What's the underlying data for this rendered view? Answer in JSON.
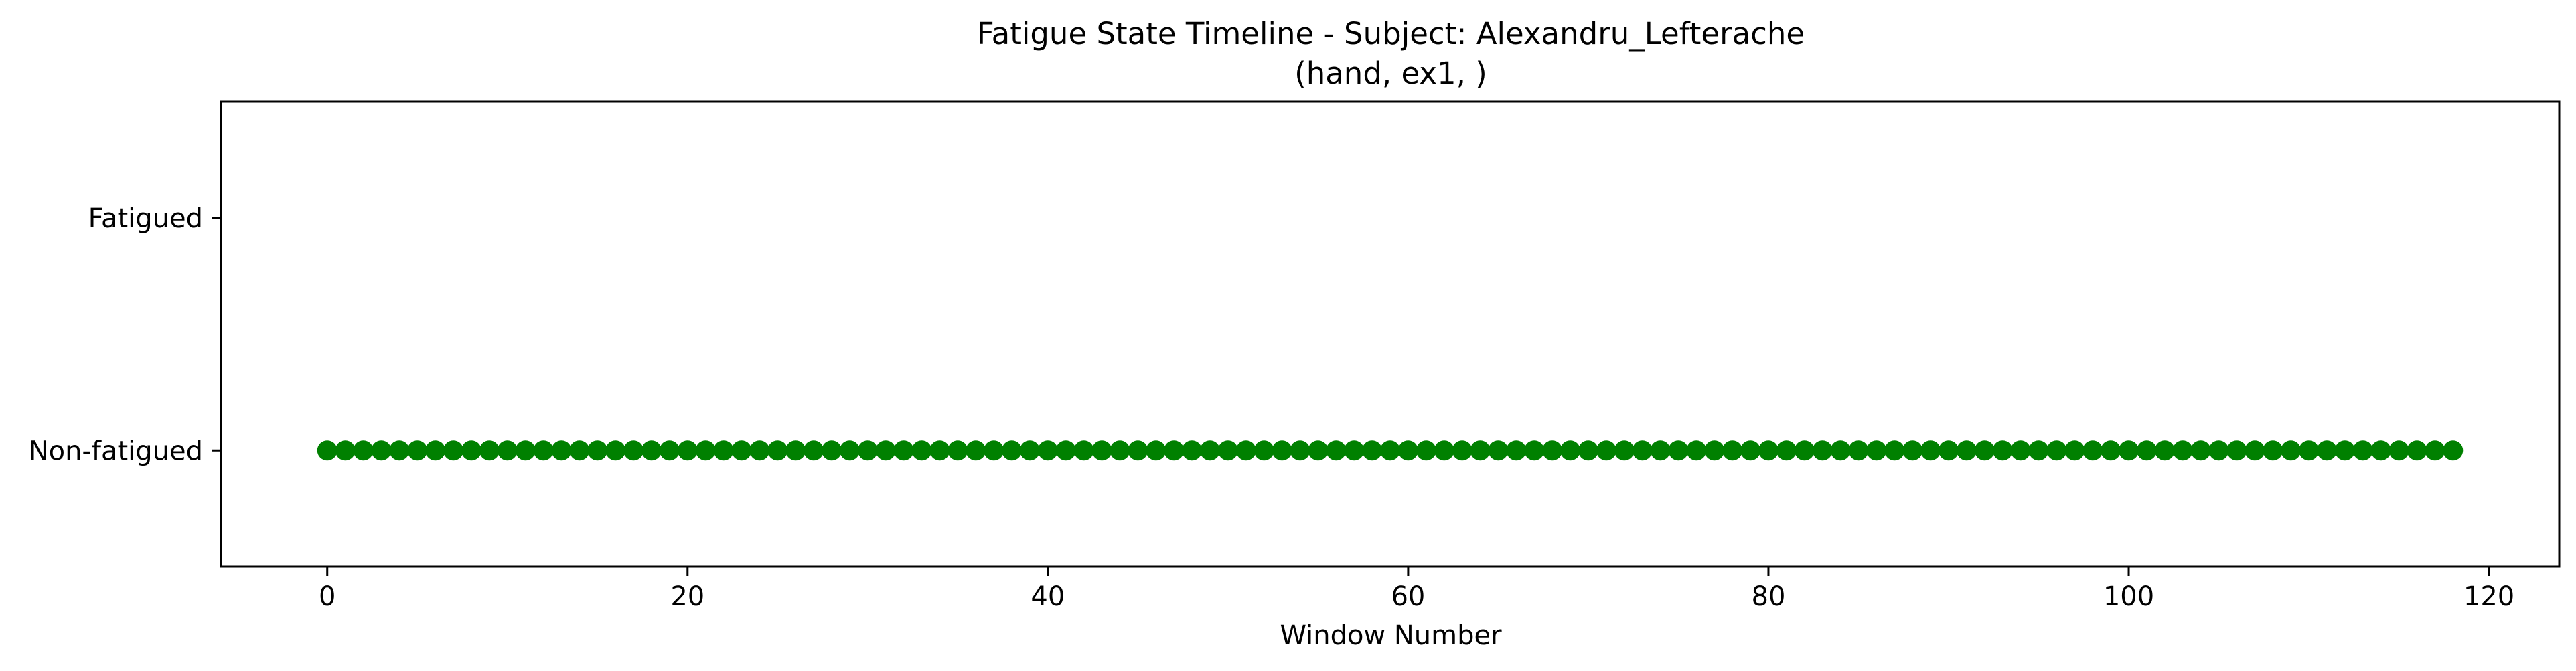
{
  "chart_data": {
    "type": "scatter",
    "title_line1": "Fatigue State Timeline - Subject: Alexandru_Lefterache",
    "title_line2": "(hand, ex1, )",
    "xlabel": "Window Number",
    "ylabel": "",
    "xlim": [
      -5.9,
      123.9
    ],
    "ylim": [
      -0.5,
      1.5
    ],
    "x_ticks": [
      0,
      20,
      40,
      60,
      80,
      100,
      120
    ],
    "y_ticks": [
      {
        "value": 0,
        "label": "Non-fatigued"
      },
      {
        "value": 1,
        "label": "Fatigued"
      }
    ],
    "grid": false,
    "legend": "none",
    "marker_color": "#008000",
    "x_start": 0,
    "x_end": 118,
    "y_value": 0
  }
}
